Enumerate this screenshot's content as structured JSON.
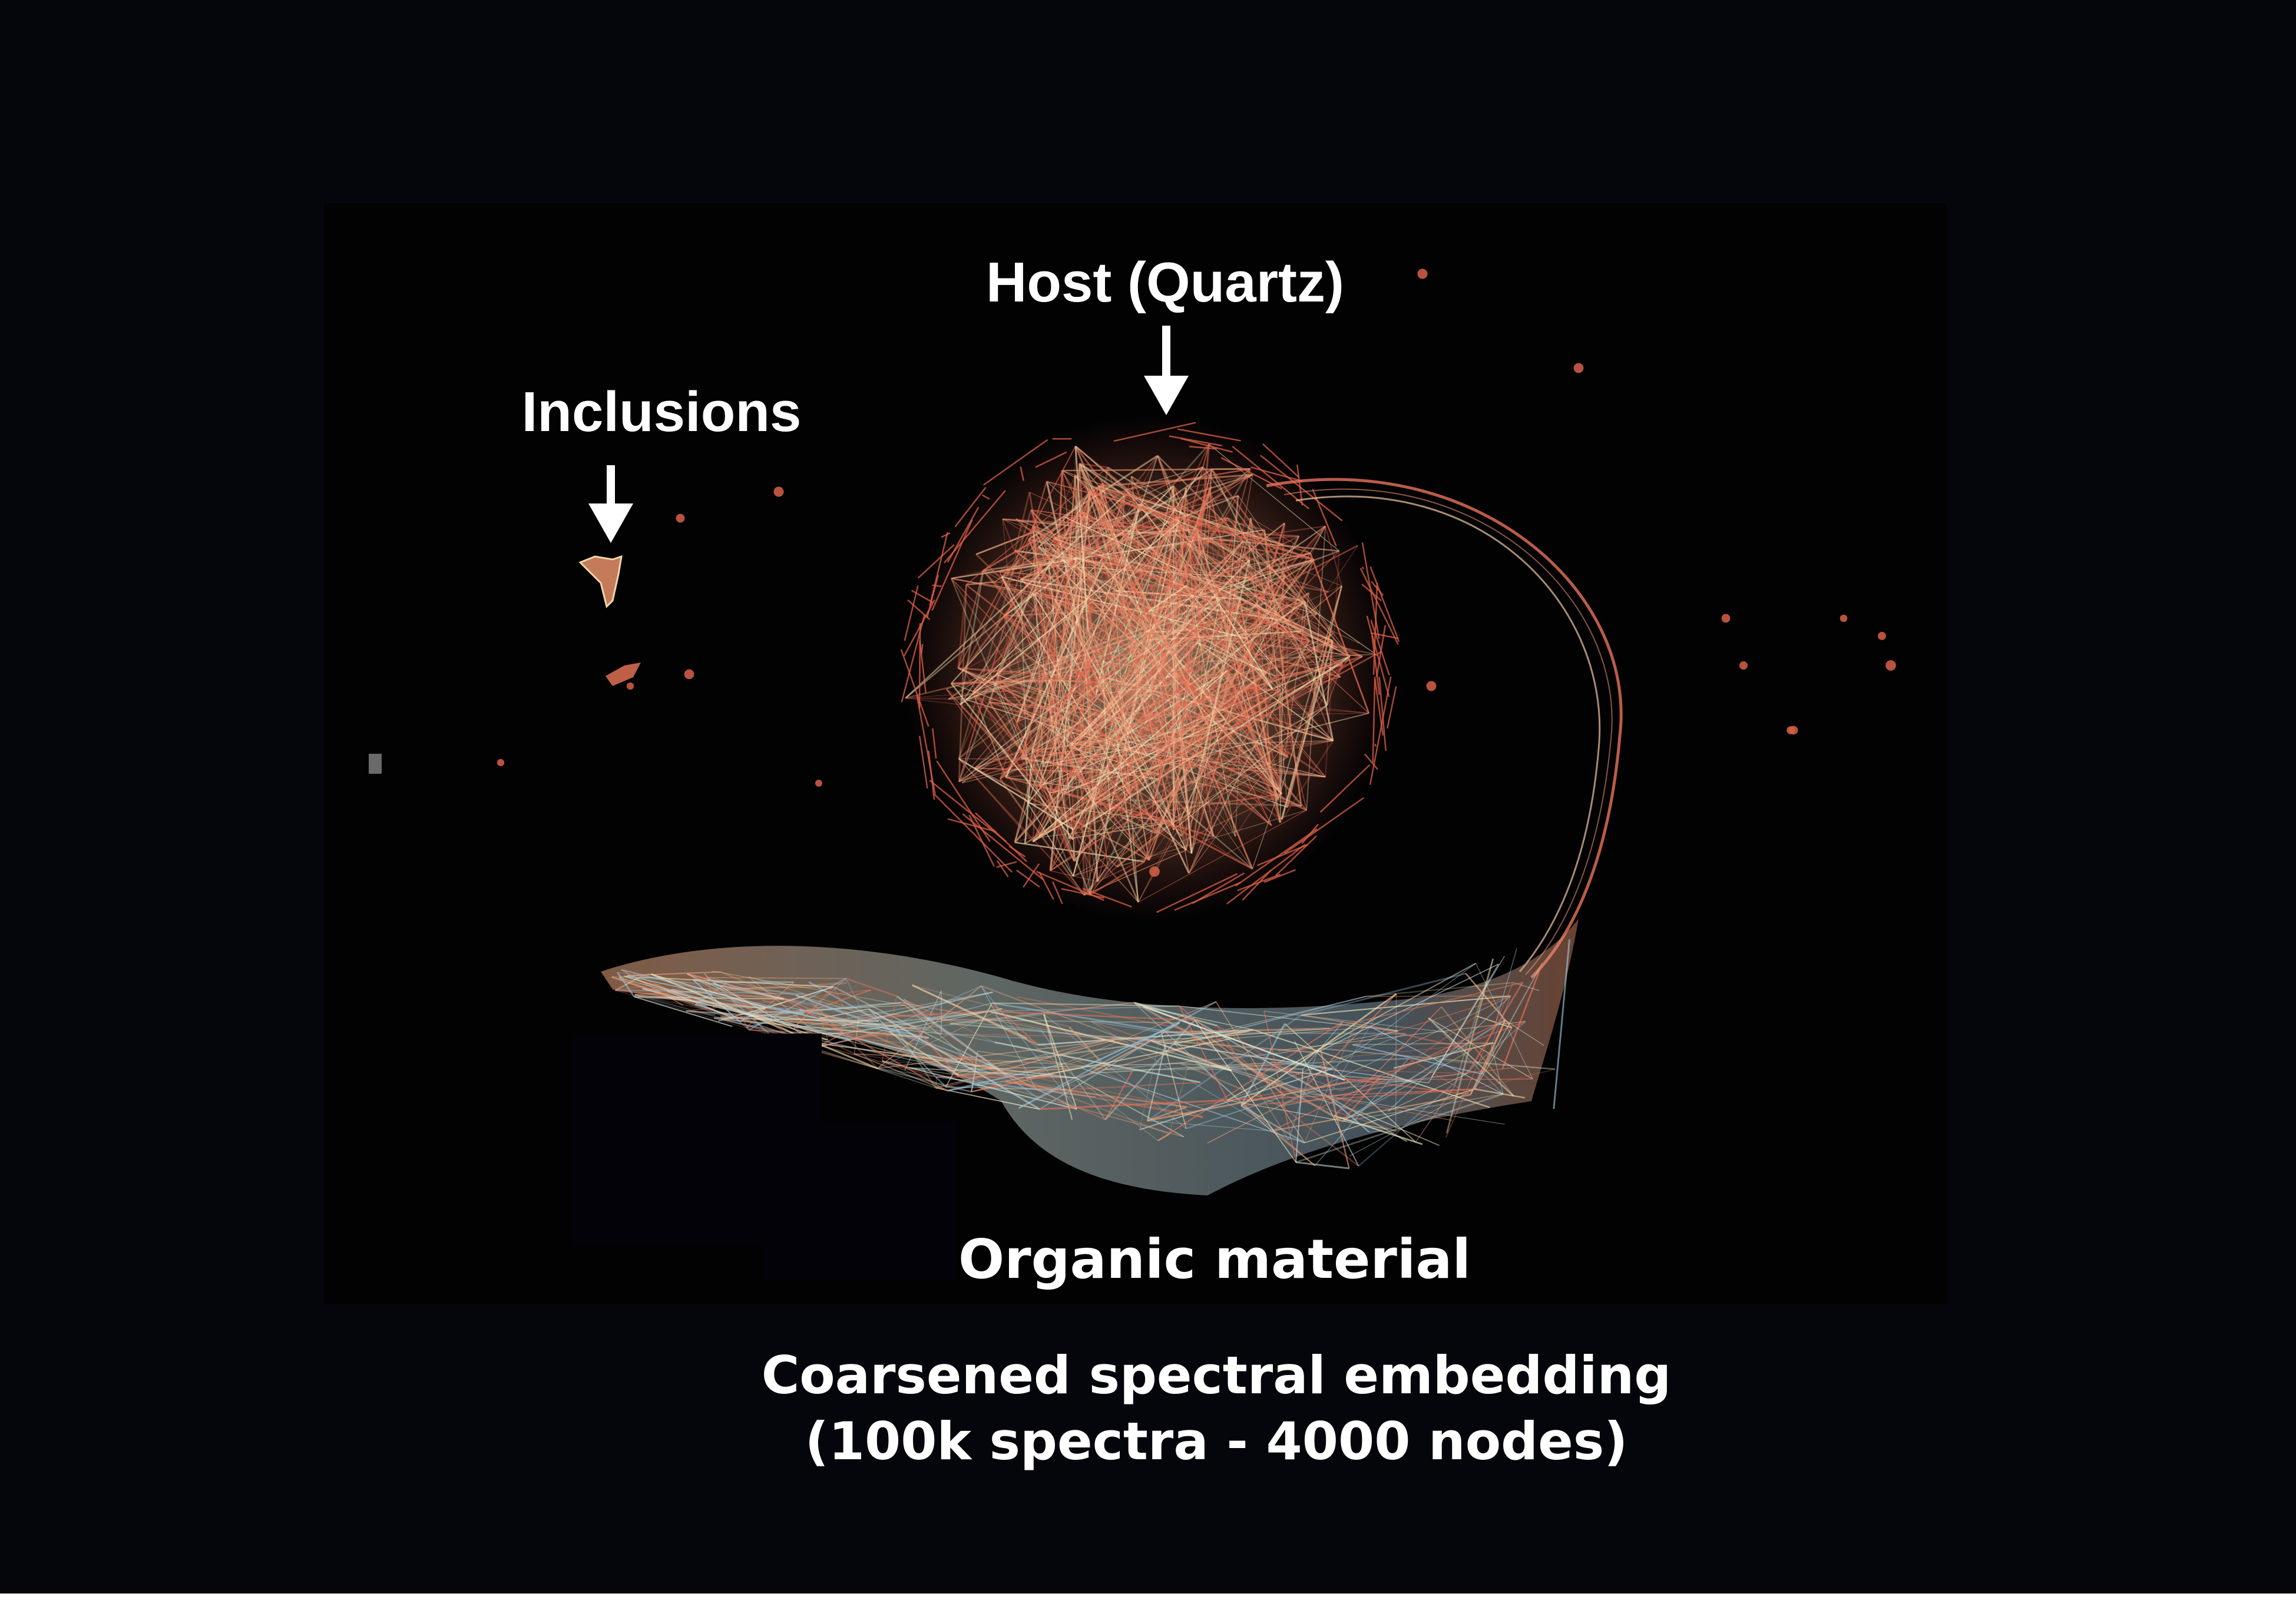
{
  "annotations": {
    "host": "Host (Quartz)",
    "inclusions": "Inclusions",
    "organic": "Organic material"
  },
  "caption": {
    "line1": "Coarsened spectral embedding",
    "line2": "(100k spectra - 4000 nodes)"
  },
  "colors": {
    "background": "#05060b",
    "panel": "#020203",
    "edge_warm": "#e8735a",
    "edge_pale": "#f2e6b8",
    "edge_cool": "#9cc3d8",
    "text": "#ffffff"
  },
  "icons": {
    "host_arrow": "down-arrow-icon",
    "inclusions_arrow": "down-arrow-icon"
  }
}
